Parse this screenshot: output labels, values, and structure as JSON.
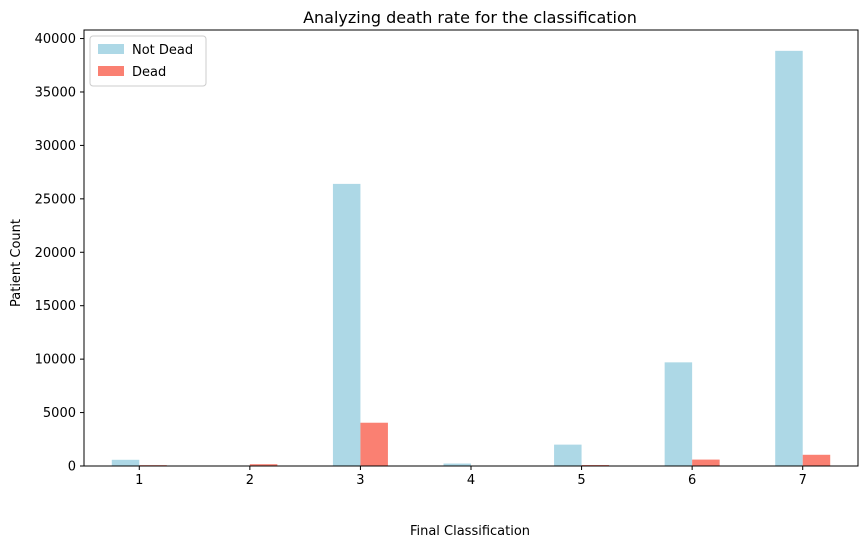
{
  "chart_data": {
    "type": "bar",
    "title": "Analyzing death rate for the classification",
    "xlabel": "Final Classification",
    "ylabel": "Patient Count",
    "categories": [
      "1",
      "2",
      "3",
      "4",
      "5",
      "6",
      "7"
    ],
    "series": [
      {
        "name": "Not Dead",
        "color": "#add8e6",
        "values": [
          580,
          0,
          26400,
          230,
          2000,
          9700,
          38850
        ]
      },
      {
        "name": "Dead",
        "color": "#fa8072",
        "values": [
          80,
          170,
          4050,
          20,
          90,
          600,
          1050
        ]
      }
    ],
    "ylim": [
      0,
      40800
    ],
    "yticks": [
      0,
      5000,
      10000,
      15000,
      20000,
      25000,
      30000,
      35000,
      40000
    ],
    "grid": false,
    "legend_position": "top-left"
  }
}
